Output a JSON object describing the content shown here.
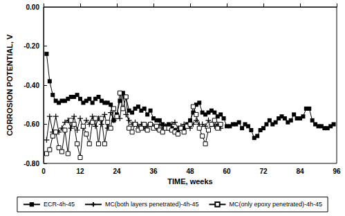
{
  "chart_data": {
    "type": "line",
    "x_label": "TIME, weeks",
    "y_label": "CORROSION POTENTIAL, V",
    "xlim": [
      0,
      96
    ],
    "xticks": [
      0,
      12,
      24,
      36,
      48,
      60,
      72,
      84,
      96
    ],
    "ylim": [
      -0.8,
      0
    ],
    "yticks": [
      {
        "value": -0.8,
        "label": "-0.80"
      },
      {
        "value": -0.6,
        "label": "-0.60"
      },
      {
        "value": -0.4,
        "label": "-0.40"
      },
      {
        "value": -0.2,
        "label": "-0.20"
      },
      {
        "value": 0,
        "label": "0.00"
      }
    ],
    "grid": false,
    "legend": "bottom",
    "series": [
      {
        "name": "ECR-4h-45",
        "color": "#000000",
        "marker": "square",
        "line_style": "solid",
        "x": [
          1,
          2,
          3,
          4,
          5,
          6,
          7,
          8,
          9,
          10,
          11,
          12,
          13,
          14,
          15,
          16,
          17,
          18,
          19,
          20,
          21,
          22,
          23,
          24,
          25,
          26,
          27,
          28,
          29,
          30,
          31,
          32,
          33,
          34,
          35,
          36,
          37,
          38,
          39,
          40,
          41,
          42,
          43,
          44,
          45,
          46,
          47,
          48,
          49,
          50,
          51,
          52,
          53,
          54,
          55,
          56,
          57,
          58,
          59,
          60,
          61,
          62,
          63,
          64,
          65,
          66,
          67,
          68,
          69,
          70,
          71,
          72,
          73,
          74,
          75,
          76,
          77,
          78,
          79,
          80,
          81,
          82,
          83,
          84,
          85,
          86,
          87,
          88,
          89,
          90,
          91,
          92,
          93,
          94,
          95
        ],
        "values": [
          -0.24,
          -0.38,
          -0.45,
          -0.48,
          -0.49,
          -0.48,
          -0.48,
          -0.47,
          -0.46,
          -0.46,
          -0.45,
          -0.47,
          -0.49,
          -0.48,
          -0.47,
          -0.49,
          -0.47,
          -0.46,
          -0.48,
          -0.49,
          -0.49,
          -0.5,
          -0.58,
          -0.55,
          -0.48,
          -0.44,
          -0.46,
          -0.53,
          -0.54,
          -0.52,
          -0.51,
          -0.53,
          -0.52,
          -0.55,
          -0.53,
          -0.57,
          -0.58,
          -0.58,
          -0.6,
          -0.61,
          -0.6,
          -0.62,
          -0.63,
          -0.64,
          -0.62,
          -0.62,
          -0.6,
          -0.58,
          -0.54,
          -0.5,
          -0.49,
          -0.54,
          -0.55,
          -0.54,
          -0.53,
          -0.54,
          -0.56,
          -0.55,
          -0.57,
          -0.61,
          -0.61,
          -0.6,
          -0.6,
          -0.59,
          -0.62,
          -0.6,
          -0.61,
          -0.63,
          -0.67,
          -0.66,
          -0.63,
          -0.62,
          -0.6,
          -0.58,
          -0.6,
          -0.59,
          -0.57,
          -0.56,
          -0.57,
          -0.59,
          -0.58,
          -0.55,
          -0.57,
          -0.57,
          -0.56,
          -0.52,
          -0.52,
          -0.58,
          -0.6,
          -0.61,
          -0.61,
          -0.62,
          -0.62,
          -0.61,
          -0.6
        ]
      },
      {
        "name": "MC(both layers penetrated)-4h-45",
        "color": "#000000",
        "marker": "plus",
        "line_style": "solid",
        "x": [
          1,
          2,
          3,
          4,
          5,
          6,
          7,
          8,
          9,
          10,
          11,
          12,
          13,
          14,
          15,
          16,
          17,
          18,
          19,
          20,
          21,
          22,
          23,
          24,
          25,
          26,
          27,
          28,
          29,
          30,
          31,
          32,
          33,
          34,
          35,
          36,
          37,
          38,
          39,
          40,
          41,
          42,
          43,
          44,
          45,
          46,
          47,
          48,
          49,
          50,
          51,
          52,
          53,
          54,
          55,
          56,
          57,
          58
        ],
        "values": [
          -0.68,
          -0.56,
          -0.64,
          -0.56,
          -0.64,
          -0.62,
          -0.59,
          -0.58,
          -0.62,
          -0.56,
          -0.63,
          -0.57,
          -0.62,
          -0.58,
          -0.6,
          -0.56,
          -0.61,
          -0.57,
          -0.6,
          -0.55,
          -0.62,
          -0.54,
          -0.58,
          -0.56,
          -0.57,
          -0.45,
          -0.55,
          -0.58,
          -0.6,
          -0.59,
          -0.61,
          -0.6,
          -0.62,
          -0.61,
          -0.6,
          -0.61,
          -0.62,
          -0.6,
          -0.62,
          -0.61,
          -0.62,
          -0.6,
          -0.59,
          -0.62,
          -0.61,
          -0.6,
          -0.61,
          -0.62,
          -0.6,
          -0.58,
          -0.6,
          -0.6,
          -0.61,
          -0.58,
          -0.6,
          -0.61,
          -0.6,
          -0.62
        ]
      },
      {
        "name": "MC(only epoxy penetrated)-4h-45",
        "color": "#000000",
        "marker": "open_square",
        "line_style": "solid",
        "x": [
          1,
          2,
          3,
          4,
          5,
          6,
          7,
          8,
          9,
          10,
          11,
          12,
          13,
          14,
          15,
          16,
          17,
          18,
          19,
          20,
          21,
          22,
          23,
          24,
          25,
          26,
          27,
          28,
          29,
          30,
          31,
          32,
          33,
          34,
          35,
          36,
          37,
          38,
          39,
          40,
          41,
          42,
          43,
          44,
          45,
          46,
          47,
          48,
          49,
          50,
          51,
          52,
          53,
          54,
          55,
          56,
          57,
          58
        ],
        "values": [
          -0.75,
          -0.73,
          -0.66,
          -0.64,
          -0.72,
          -0.74,
          -0.63,
          -0.75,
          -0.58,
          -0.6,
          -0.7,
          -0.77,
          -0.61,
          -0.65,
          -0.7,
          -0.59,
          -0.57,
          -0.7,
          -0.57,
          -0.7,
          -0.59,
          -0.62,
          -0.52,
          -0.56,
          -0.44,
          -0.52,
          -0.46,
          -0.62,
          -0.64,
          -0.6,
          -0.63,
          -0.62,
          -0.6,
          -0.63,
          -0.6,
          -0.62,
          -0.61,
          -0.63,
          -0.64,
          -0.62,
          -0.62,
          -0.63,
          -0.64,
          -0.65,
          -0.62,
          -0.64,
          -0.61,
          -0.6,
          -0.51,
          -0.55,
          -0.62,
          -0.66,
          -0.7,
          -0.63,
          -0.6,
          -0.58,
          -0.62,
          -0.6
        ]
      }
    ]
  }
}
